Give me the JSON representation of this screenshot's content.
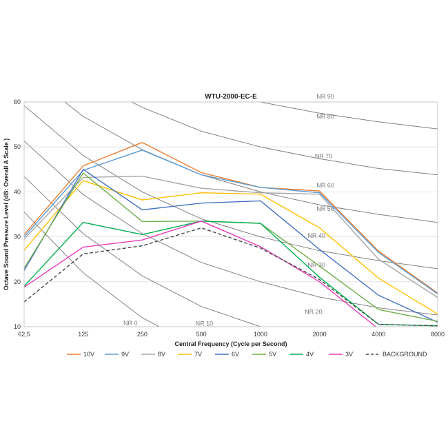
{
  "chart_data": {
    "type": "line",
    "title": "WTU-2000-EC-E",
    "xlabel": "Central Frequency  (Cycle per Second)",
    "ylabel": "Octave Sound Pressure Level (dB: Overall A Scale )",
    "ylim": [
      10,
      60
    ],
    "yticks": [
      "10",
      "20",
      "30",
      "40",
      "50",
      "60"
    ],
    "categories": [
      "62,5",
      "125",
      "250",
      "500",
      "1000",
      "2000",
      "4000",
      "8000"
    ],
    "x_scale": "log2",
    "legend_position": "bottom",
    "series": [
      {
        "name": "10V",
        "color": "#ED7D31",
        "dash": false,
        "values": [
          30.5,
          45.8,
          51.0,
          44.3,
          41.0,
          40.2,
          26.8,
          17.5
        ]
      },
      {
        "name": "9V",
        "color": "#5B9BD5",
        "dash": false,
        "values": [
          30.0,
          44.8,
          49.3,
          43.8,
          41.0,
          39.8,
          26.5,
          17.3
        ]
      },
      {
        "name": "8V",
        "color": "#A5A5A5",
        "dash": false,
        "values": [
          29.5,
          43.2,
          43.5,
          40.8,
          39.8,
          39.5,
          25.0,
          16.5
        ]
      },
      {
        "name": "7V",
        "color": "#FFC000",
        "dash": false,
        "values": [
          27.0,
          42.5,
          38.2,
          39.8,
          39.5,
          32.0,
          20.8,
          12.8
        ]
      },
      {
        "name": "6V",
        "color": "#4472C4",
        "dash": false,
        "values": [
          22.5,
          45.0,
          36.0,
          37.5,
          38.0,
          27.2,
          17.0,
          11.0
        ]
      },
      {
        "name": "5V",
        "color": "#70AD47",
        "dash": false,
        "values": [
          23.0,
          44.2,
          33.4,
          33.5,
          33.0,
          23.5,
          13.8,
          11.2
        ]
      },
      {
        "name": "4V",
        "color": "#00B050",
        "dash": false,
        "values": [
          19.0,
          33.2,
          30.5,
          33.5,
          33.0,
          21.0,
          10.5,
          10.2
        ]
      },
      {
        "name": "3V",
        "color": "#E83ABD",
        "dash": false,
        "values": [
          18.8,
          27.7,
          29.3,
          33.5,
          27.8,
          20.0,
          9.5,
          9.5
        ]
      },
      {
        "name": "BACKGROUND",
        "color": "#444444",
        "dash": true,
        "values": [
          15.5,
          26.2,
          28.0,
          32.0,
          27.5,
          20.5,
          10.5,
          10.2
        ]
      }
    ],
    "nr_curves": [
      {
        "label": "NR 0",
        "values": [
          35.5,
          22.0,
          12.0,
          5.0,
          -0.5,
          -4.0,
          -6.5,
          -8.0
        ]
      },
      {
        "label": "NR 10",
        "values": [
          43.4,
          30.7,
          21.3,
          14.5,
          10.0,
          6.6,
          4.2,
          2.3
        ]
      },
      {
        "label": "NR 20",
        "values": [
          51.3,
          39.4,
          30.7,
          24.3,
          20.0,
          16.6,
          14.2,
          12.6
        ]
      },
      {
        "label": "NR 30",
        "values": [
          59.2,
          48.1,
          40.0,
          34.0,
          30.0,
          26.9,
          24.7,
          22.9
        ]
      },
      {
        "label": "NR 40",
        "values": [
          67.1,
          56.8,
          49.4,
          43.8,
          40.0,
          37.1,
          35.0,
          33.2
        ]
      },
      {
        "label": "NR 50",
        "values": [
          75.0,
          65.5,
          58.8,
          53.5,
          50.0,
          47.4,
          45.2,
          43.8
        ]
      },
      {
        "label": "NR 60",
        "values": [
          82.9,
          74.2,
          68.1,
          63.3,
          60.0,
          57.5,
          55.6,
          54.0
        ]
      },
      {
        "label": "NR 70",
        "values": [
          90.8,
          82.9,
          77.4,
          73.0,
          70.0,
          67.7,
          65.9,
          64.4
        ]
      },
      {
        "label": "NR 80",
        "values": [
          98.7,
          91.6,
          86.8,
          82.8,
          80.0,
          77.9,
          76.3,
          74.7
        ]
      },
      {
        "label": "NR 90",
        "values": [
          106.6,
          100.3,
          96.1,
          92.6,
          90.0,
          88.0,
          86.6,
          85.0
        ]
      }
    ],
    "nr_label_texts": [
      "NR 0",
      "NR 10",
      "NR 20",
      "NR 30",
      "NR 40",
      "NR 50",
      "NR 60",
      "NR 70",
      "NR  80",
      "NR 90"
    ]
  }
}
